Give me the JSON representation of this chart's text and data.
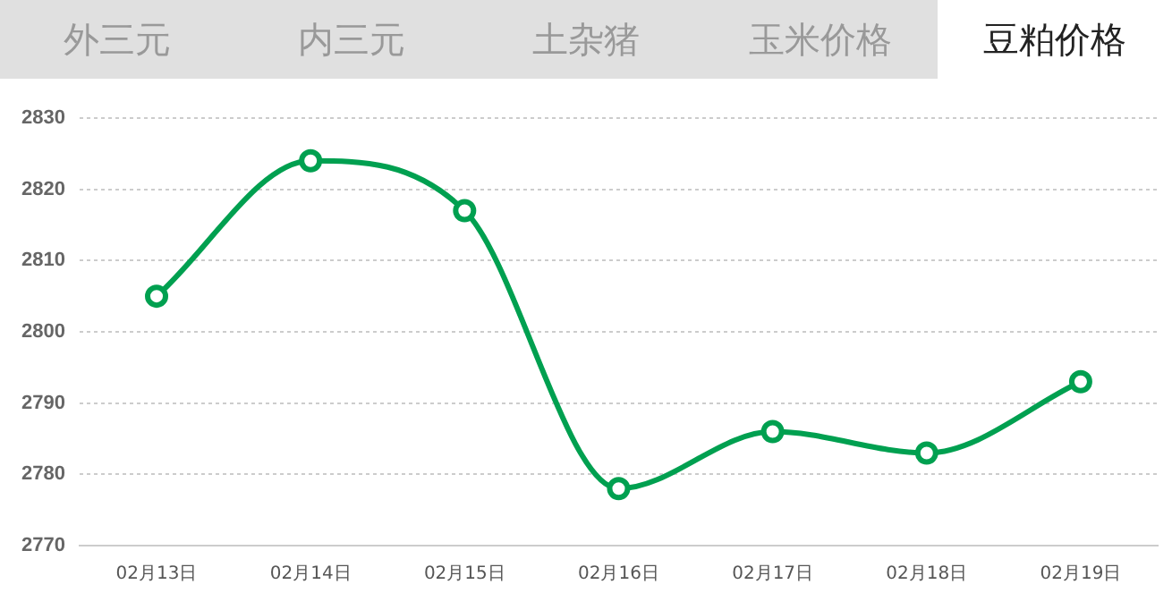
{
  "chart_data": {
    "type": "line",
    "title": "豆粕价格",
    "annotations": [
      "外三元",
      "内三元",
      "土杂猪",
      "玉米价格"
    ],
    "categories": [
      "02月13日",
      "02月14日",
      "02月15日",
      "02月16日",
      "02月17日",
      "02月18日",
      "02月19日"
    ],
    "series": [
      {
        "color": "#00a050",
        "values": [
          2805,
          2824,
          2817,
          2778,
          2786,
          2783,
          2793
        ]
      }
    ],
    "ylim": [
      2770,
      2830
    ],
    "yticks": [
      2770,
      2780,
      2790,
      2800,
      2810,
      2820,
      2830
    ],
    "grid": "y",
    "marker": "circle",
    "line_style": "solid",
    "legend": false
  }
}
